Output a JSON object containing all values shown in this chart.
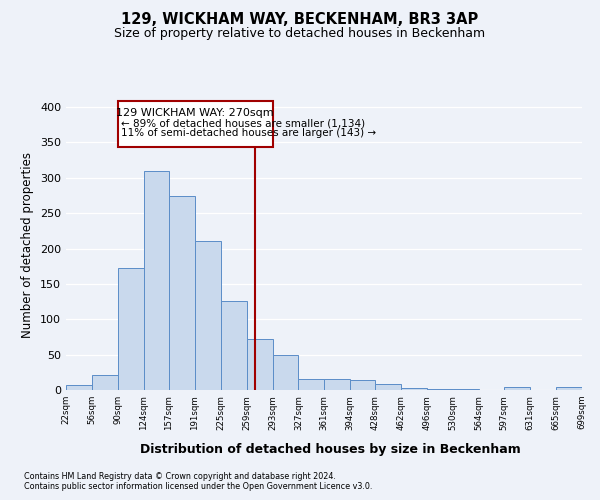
{
  "title": "129, WICKHAM WAY, BECKENHAM, BR3 3AP",
  "subtitle": "Size of property relative to detached houses in Beckenham",
  "xlabel": "Distribution of detached houses by size in Beckenham",
  "ylabel": "Number of detached properties",
  "bin_edges": [
    22,
    56,
    90,
    124,
    157,
    191,
    225,
    259,
    293,
    327,
    361,
    394,
    428,
    462,
    496,
    530,
    564,
    597,
    631,
    665,
    699
  ],
  "bar_heights": [
    7,
    21,
    172,
    309,
    274,
    210,
    126,
    72,
    49,
    16,
    16,
    14,
    8,
    3,
    2,
    2,
    0,
    4,
    0,
    4
  ],
  "bar_facecolor": "#c9d9ed",
  "bar_edgecolor": "#5b8dc8",
  "vline_x": 270,
  "vline_color": "#a00000",
  "ylim": [
    0,
    410
  ],
  "yticks": [
    0,
    50,
    100,
    150,
    200,
    250,
    300,
    350,
    400
  ],
  "tick_labels": [
    "22sqm",
    "56sqm",
    "90sqm",
    "124sqm",
    "157sqm",
    "191sqm",
    "225sqm",
    "259sqm",
    "293sqm",
    "327sqm",
    "361sqm",
    "394sqm",
    "428sqm",
    "462sqm",
    "496sqm",
    "530sqm",
    "564sqm",
    "597sqm",
    "631sqm",
    "665sqm",
    "699sqm"
  ],
  "annotation_title": "129 WICKHAM WAY: 270sqm",
  "annotation_line1": "← 89% of detached houses are smaller (1,134)",
  "annotation_line2": "11% of semi-detached houses are larger (143) →",
  "annotation_box_color": "#ffffff",
  "annotation_box_edgecolor": "#a00000",
  "footer_line1": "Contains HM Land Registry data © Crown copyright and database right 2024.",
  "footer_line2": "Contains public sector information licensed under the Open Government Licence v3.0.",
  "bg_color": "#eef2f9",
  "grid_color": "#ffffff",
  "title_fontsize": 10.5,
  "subtitle_fontsize": 9,
  "xlabel_fontsize": 9,
  "ylabel_fontsize": 8.5
}
